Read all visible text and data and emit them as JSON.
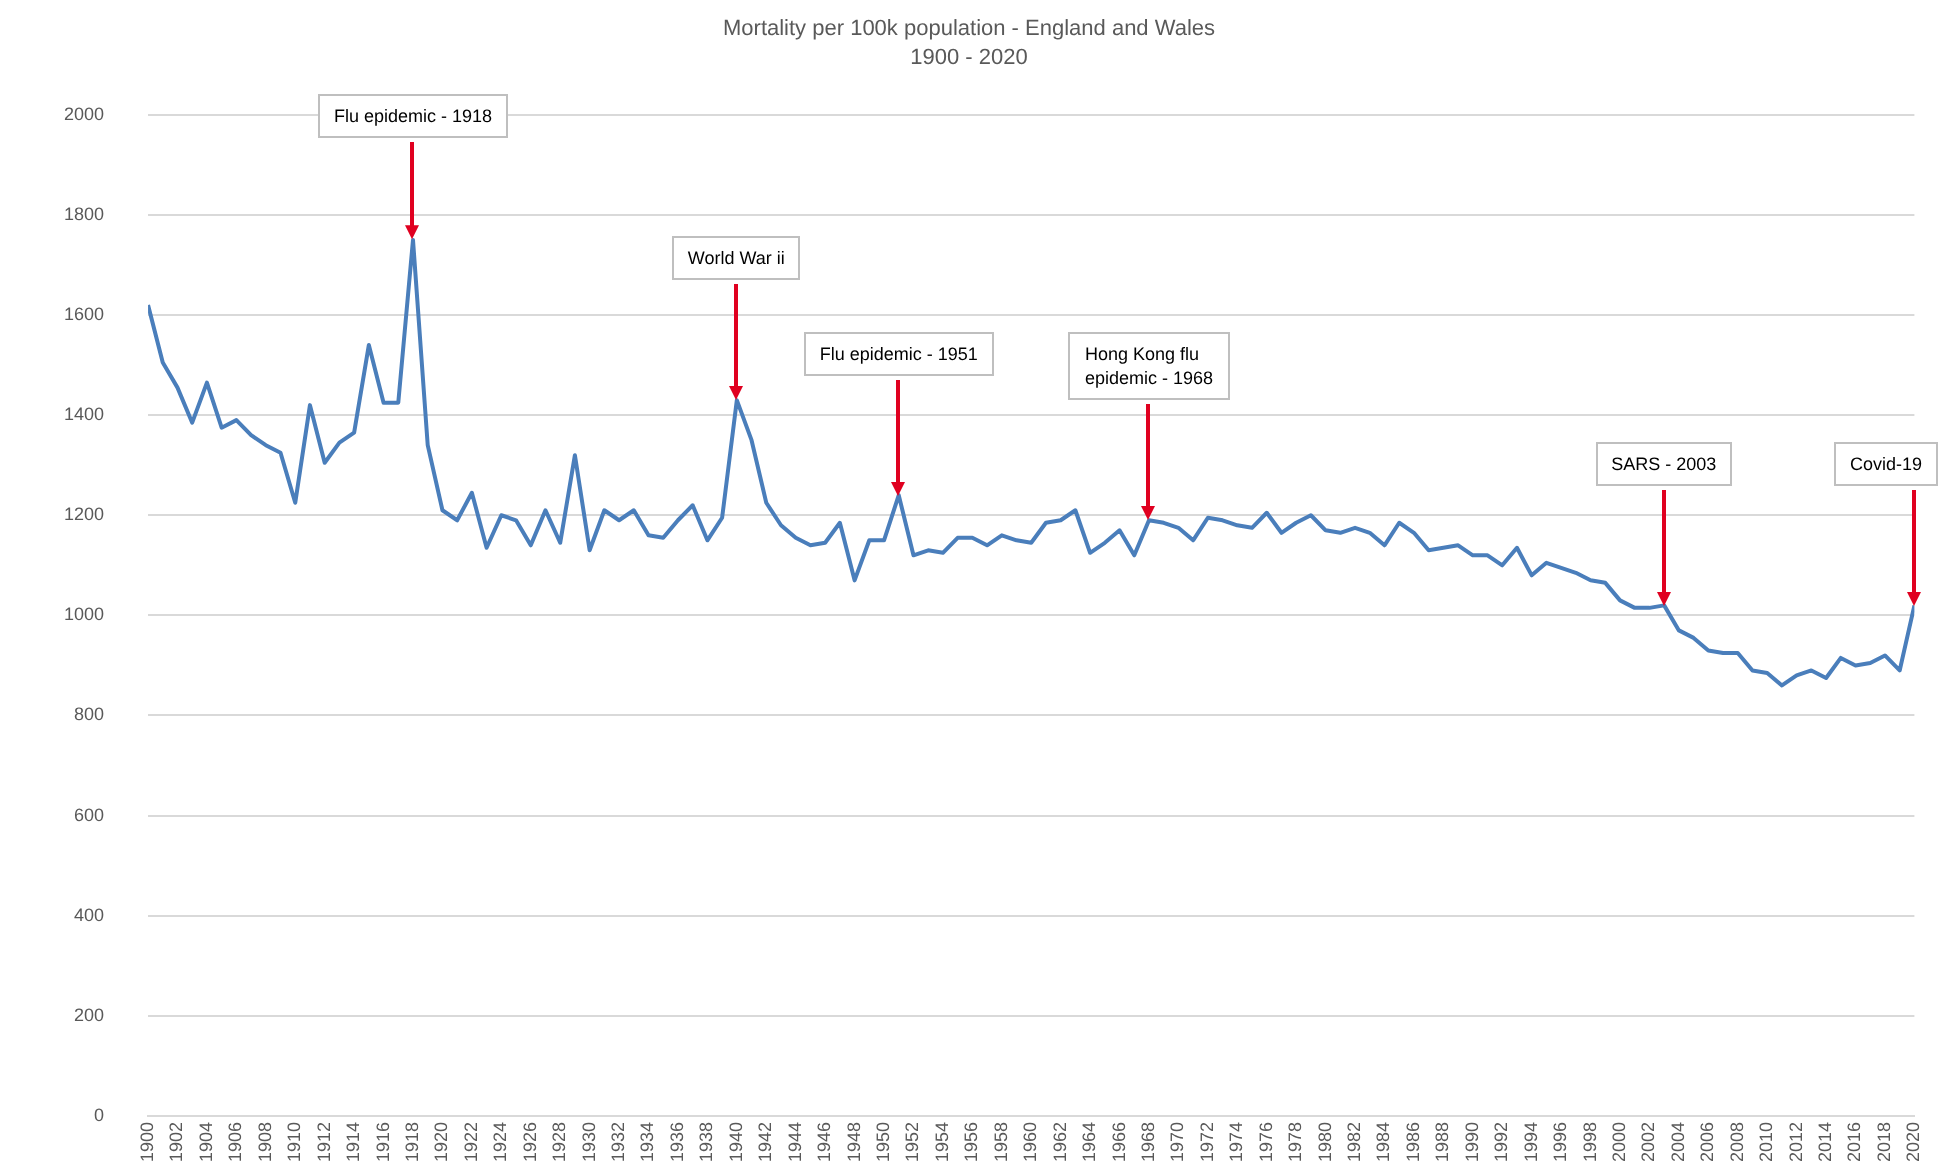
{
  "chart_data": {
    "type": "line",
    "title": "Mortality per 100k population - England and Wales",
    "subtitle": "1900 - 2020",
    "x": [
      1900,
      1901,
      1902,
      1903,
      1904,
      1905,
      1906,
      1907,
      1908,
      1909,
      1910,
      1911,
      1912,
      1913,
      1914,
      1915,
      1916,
      1917,
      1918,
      1919,
      1920,
      1921,
      1922,
      1923,
      1924,
      1925,
      1926,
      1927,
      1928,
      1929,
      1930,
      1931,
      1932,
      1933,
      1934,
      1935,
      1936,
      1937,
      1938,
      1939,
      1940,
      1941,
      1942,
      1943,
      1944,
      1945,
      1946,
      1947,
      1948,
      1949,
      1950,
      1951,
      1952,
      1953,
      1954,
      1955,
      1956,
      1957,
      1958,
      1959,
      1960,
      1961,
      1962,
      1963,
      1964,
      1965,
      1966,
      1967,
      1968,
      1969,
      1970,
      1971,
      1972,
      1973,
      1974,
      1975,
      1976,
      1977,
      1978,
      1979,
      1980,
      1981,
      1982,
      1983,
      1984,
      1985,
      1986,
      1987,
      1988,
      1989,
      1990,
      1991,
      1992,
      1993,
      1994,
      1995,
      1996,
      1997,
      1998,
      1999,
      2000,
      2001,
      2002,
      2003,
      2004,
      2005,
      2006,
      2007,
      2008,
      2009,
      2010,
      2011,
      2012,
      2013,
      2014,
      2015,
      2016,
      2017,
      2018,
      2019,
      2020
    ],
    "series": [
      {
        "color": "#4a7ebb",
        "values": [
          1620,
          1505,
          1455,
          1385,
          1465,
          1375,
          1390,
          1360,
          1340,
          1325,
          1225,
          1420,
          1305,
          1345,
          1365,
          1540,
          1425,
          1425,
          1750,
          1340,
          1210,
          1190,
          1245,
          1135,
          1200,
          1190,
          1140,
          1210,
          1145,
          1320,
          1130,
          1210,
          1190,
          1210,
          1160,
          1155,
          1190,
          1220,
          1150,
          1195,
          1430,
          1350,
          1225,
          1180,
          1155,
          1140,
          1145,
          1185,
          1070,
          1150,
          1150,
          1240,
          1120,
          1130,
          1125,
          1155,
          1155,
          1140,
          1160,
          1150,
          1145,
          1185,
          1190,
          1210,
          1125,
          1145,
          1170,
          1120,
          1190,
          1185,
          1175,
          1150,
          1195,
          1190,
          1180,
          1175,
          1205,
          1165,
          1185,
          1200,
          1170,
          1165,
          1175,
          1165,
          1140,
          1185,
          1165,
          1130,
          1135,
          1140,
          1120,
          1120,
          1100,
          1135,
          1080,
          1105,
          1095,
          1085,
          1070,
          1065,
          1030,
          1015,
          1015,
          1020,
          970,
          955,
          930,
          925,
          925,
          890,
          885,
          860,
          880,
          890,
          875,
          915,
          900,
          905,
          920,
          890,
          1020
        ]
      }
    ],
    "xlim": [
      1900,
      2020
    ],
    "xticks": [
      1900,
      1902,
      1904,
      1906,
      1908,
      1910,
      1912,
      1914,
      1916,
      1918,
      1920,
      1922,
      1924,
      1926,
      1928,
      1930,
      1932,
      1934,
      1936,
      1938,
      1940,
      1942,
      1944,
      1946,
      1948,
      1950,
      1952,
      1954,
      1956,
      1958,
      1960,
      1962,
      1964,
      1966,
      1968,
      1970,
      1972,
      1974,
      1976,
      1978,
      1980,
      1982,
      1984,
      1986,
      1988,
      1990,
      1992,
      1994,
      1996,
      1998,
      2000,
      2002,
      2004,
      2006,
      2008,
      2010,
      2012,
      2014,
      2016,
      2018,
      2020
    ],
    "ylim": [
      0,
      2000
    ],
    "yticks": [
      0,
      200,
      400,
      600,
      800,
      1000,
      1200,
      1400,
      1600,
      1800,
      2000
    ],
    "grid": "y",
    "marker": "none",
    "line_style": "solid",
    "annotations": [
      {
        "text": "Flu epidemic - 1918",
        "x": 1918,
        "y": 1750
      },
      {
        "text": "World War ii",
        "x": 1940,
        "y": 1430
      },
      {
        "text": "Flu epidemic - 1951",
        "x": 1951,
        "y": 1240
      },
      {
        "text": "Hong Kong flu\nepidemic - 1968",
        "x": 1968,
        "y": 1190
      },
      {
        "text": "SARS - 2003",
        "x": 2003,
        "y": 1020
      },
      {
        "text": "Covid-19",
        "x": 2020,
        "y": 1020
      }
    ]
  }
}
